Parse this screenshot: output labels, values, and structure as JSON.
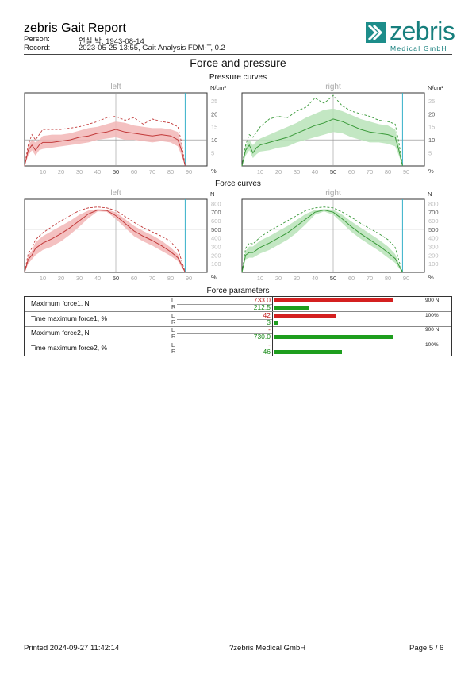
{
  "header": {
    "title": "zebris Gait Report",
    "person_label": "Person:",
    "person_value": "연실 박, 1943-08-14",
    "record_label": "Record:",
    "record_value": "2023-05-25 13:55, Gait Analysis FDM-T, 0.2",
    "logo_word": "zebris",
    "logo_sub": "Medical GmbH"
  },
  "section_title": "Force and pressure",
  "pressure": {
    "title": "Pressure curves",
    "left_label": "left",
    "right_label": "right",
    "unit": "N/cm²",
    "pct": "%",
    "yticks": [
      "25",
      "20",
      "15",
      "10",
      "5"
    ],
    "xticks": [
      "10",
      "20",
      "30",
      "40",
      "50",
      "60",
      "70",
      "80",
      "90"
    ],
    "chart_data": {
      "type": "line",
      "x": [
        0,
        2,
        4,
        6,
        8,
        10,
        15,
        20,
        25,
        30,
        35,
        40,
        45,
        50,
        55,
        60,
        65,
        70,
        75,
        80,
        84,
        86,
        88
      ],
      "ylim": [
        0,
        28
      ],
      "series": [
        {
          "name": "left",
          "mean": [
            0,
            6,
            8,
            6,
            8,
            9,
            9,
            9.5,
            10,
            11,
            11.5,
            12.5,
            13,
            14,
            13,
            12.5,
            12,
            11.5,
            12,
            11.5,
            10,
            6,
            0
          ],
          "band_hi": [
            0,
            8,
            10,
            9,
            10,
            11.5,
            12,
            12,
            12.5,
            13.5,
            14.5,
            15,
            16,
            17,
            16.5,
            15.5,
            15,
            14.5,
            14.5,
            14,
            13,
            8,
            0
          ],
          "band_lo": [
            0,
            4,
            6,
            4,
            6,
            6.5,
            7,
            7.5,
            8,
            8.5,
            9,
            10,
            10.5,
            11,
            10,
            10,
            9.5,
            9,
            9.5,
            9,
            7.5,
            4,
            0
          ],
          "max": [
            0,
            8,
            12,
            10,
            12,
            14,
            14,
            14,
            14.5,
            15,
            16,
            17,
            18.5,
            19,
            17.5,
            18.5,
            16,
            18,
            17,
            16.5,
            15,
            9,
            0
          ]
        },
        {
          "name": "right",
          "mean": [
            0,
            6,
            8,
            5,
            7,
            8,
            9,
            10,
            11,
            12.5,
            14,
            15.5,
            16.5,
            18,
            17,
            15.5,
            14,
            13,
            12.5,
            12,
            11,
            6,
            0
          ],
          "band_hi": [
            0,
            8,
            10,
            8,
            9.5,
            10.5,
            12,
            13.5,
            15,
            16.5,
            18.5,
            20,
            21.5,
            22,
            21,
            19.5,
            18,
            17,
            16,
            15.5,
            14,
            8,
            0
          ],
          "band_lo": [
            0,
            4,
            6,
            3,
            4.5,
            5.5,
            6,
            7,
            7.5,
            9,
            10,
            11,
            12,
            13,
            12.5,
            11,
            10,
            9,
            9,
            8.5,
            7.5,
            4,
            0
          ],
          "max": [
            0,
            8,
            12,
            11,
            13,
            15,
            18,
            19,
            18.5,
            21,
            22.5,
            26,
            24,
            27,
            23,
            21,
            20,
            19,
            17.5,
            17,
            16,
            9,
            0
          ]
        }
      ]
    }
  },
  "force": {
    "title": "Force curves",
    "left_label": "left",
    "right_label": "right",
    "unit": "N",
    "pct": "%",
    "yticks": [
      "800",
      "700",
      "600",
      "500",
      "400",
      "300",
      "200",
      "100"
    ],
    "xticks": [
      "10",
      "20",
      "30",
      "40",
      "50",
      "60",
      "70",
      "80",
      "90"
    ],
    "chart_data": {
      "type": "line",
      "x": [
        0,
        2,
        4,
        6,
        10,
        15,
        20,
        25,
        30,
        35,
        40,
        45,
        50,
        55,
        60,
        65,
        70,
        75,
        80,
        84,
        86,
        88
      ],
      "ylim": [
        0,
        850
      ],
      "series": [
        {
          "name": "left",
          "mean": [
            0,
            150,
            200,
            280,
            340,
            390,
            450,
            520,
            600,
            680,
            725,
            720,
            660,
            570,
            480,
            420,
            370,
            310,
            240,
            170,
            90,
            0
          ],
          "band_hi": [
            0,
            200,
            250,
            350,
            420,
            480,
            540,
            600,
            670,
            720,
            735,
            730,
            700,
            620,
            540,
            480,
            430,
            370,
            290,
            210,
            110,
            0
          ],
          "band_lo": [
            0,
            100,
            150,
            200,
            260,
            300,
            360,
            440,
            530,
            630,
            710,
            705,
            620,
            520,
            420,
            360,
            310,
            250,
            190,
            130,
            60,
            0
          ],
          "max": [
            0,
            220,
            280,
            380,
            460,
            530,
            600,
            660,
            720,
            750,
            760,
            750,
            720,
            650,
            580,
            520,
            470,
            420,
            360,
            260,
            140,
            0
          ]
        },
        {
          "name": "right",
          "mean": [
            0,
            200,
            230,
            230,
            290,
            340,
            400,
            460,
            540,
            620,
            700,
            725,
            700,
            620,
            530,
            450,
            380,
            310,
            230,
            160,
            80,
            0
          ],
          "band_hi": [
            0,
            250,
            300,
            300,
            370,
            420,
            480,
            540,
            610,
            680,
            725,
            735,
            730,
            670,
            590,
            520,
            450,
            380,
            300,
            210,
            110,
            0
          ],
          "band_lo": [
            0,
            150,
            170,
            170,
            220,
            260,
            320,
            380,
            460,
            560,
            670,
            710,
            670,
            570,
            470,
            390,
            320,
            250,
            170,
            110,
            50,
            0
          ],
          "max": [
            0,
            280,
            340,
            330,
            410,
            480,
            540,
            600,
            660,
            720,
            750,
            760,
            750,
            700,
            640,
            570,
            510,
            450,
            380,
            290,
            140,
            0
          ]
        }
      ]
    }
  },
  "parameters": {
    "title": "Force parameters",
    "side_l": "L",
    "side_r": "R",
    "rows": [
      {
        "label": "Maximum force1, N",
        "left_value": "733.0",
        "right_value": "212.5",
        "max_label": "900 N",
        "left_fraction": 0.814,
        "right_fraction": 0.236
      },
      {
        "label": "Time maximum force1, %",
        "left_value": "42",
        "right_value": "3",
        "max_label": "100%",
        "left_fraction": 0.42,
        "right_fraction": 0.03
      },
      {
        "label": "Maximum force2, N",
        "left_value": "-",
        "right_value": "730.0",
        "max_label": "900 N",
        "left_fraction": 0,
        "right_fraction": 0.811
      },
      {
        "label": "Time maximum force2, %",
        "left_value": "-",
        "right_value": "46",
        "max_label": "100%",
        "left_fraction": 0,
        "right_fraction": 0.46
      }
    ]
  },
  "colors": {
    "left_line": "#c23a3a",
    "left_band": "#f2b6b6",
    "right_line": "#3a9a3a",
    "right_band": "#b8e3b8",
    "bar_left": "#d42020",
    "bar_right": "#1e9e1e",
    "cyan_marker": "#35b0c8",
    "logo": "#177f7d"
  },
  "footer": {
    "printed": "Printed  2024-09-27 11:42:14",
    "company": "?zebris Medical GmbH",
    "page": "Page  5 / 6"
  }
}
